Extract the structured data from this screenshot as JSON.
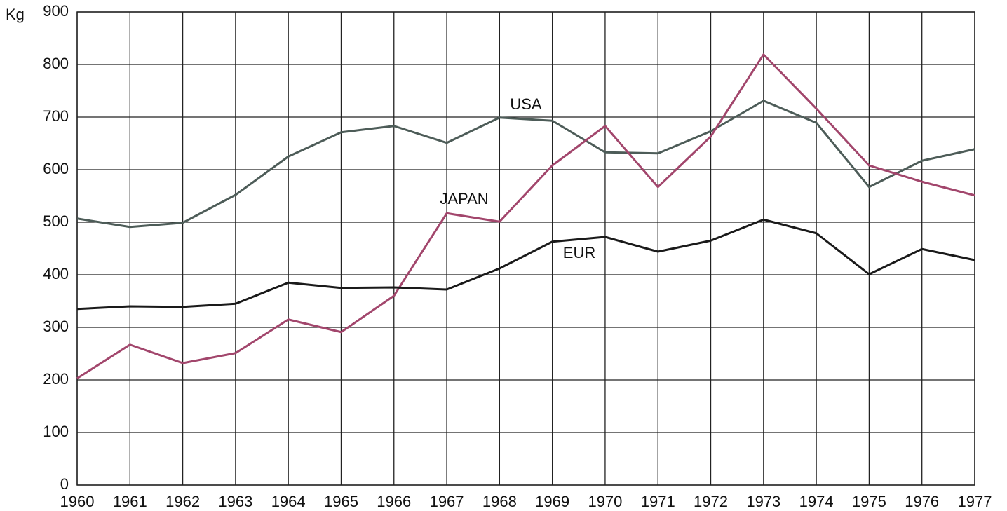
{
  "chart_data": {
    "type": "line",
    "ylabel": "Kg",
    "x": [
      1960,
      1961,
      1962,
      1963,
      1964,
      1965,
      1966,
      1967,
      1968,
      1969,
      1970,
      1971,
      1972,
      1973,
      1974,
      1975,
      1976,
      1977
    ],
    "xlim": [
      1960,
      1977
    ],
    "xticks": [
      1960,
      1961,
      1962,
      1963,
      1964,
      1965,
      1966,
      1967,
      1968,
      1969,
      1970,
      1971,
      1972,
      1973,
      1974,
      1975,
      1976,
      1977
    ],
    "ylim": [
      0,
      900
    ],
    "yticks": [
      0,
      100,
      200,
      300,
      400,
      500,
      600,
      700,
      800,
      900
    ],
    "grid": true,
    "series": [
      {
        "name": "USA",
        "color": "#4d5c58",
        "values": [
          507,
          491,
          499,
          552,
          625,
          671,
          683,
          651,
          699,
          693,
          633,
          631,
          673,
          731,
          689,
          567,
          617,
          639
        ]
      },
      {
        "name": "JAPAN",
        "color": "#a2466c",
        "values": [
          203,
          267,
          232,
          251,
          315,
          291,
          360,
          517,
          501,
          608,
          683,
          567,
          663,
          819,
          716,
          608,
          577,
          551
        ]
      },
      {
        "name": "EUR",
        "color": "#1a1a1a",
        "values": [
          335,
          340,
          339,
          345,
          385,
          375,
          376,
          372,
          412,
          463,
          472,
          444,
          465,
          505,
          479,
          401,
          449,
          428
        ]
      }
    ]
  }
}
